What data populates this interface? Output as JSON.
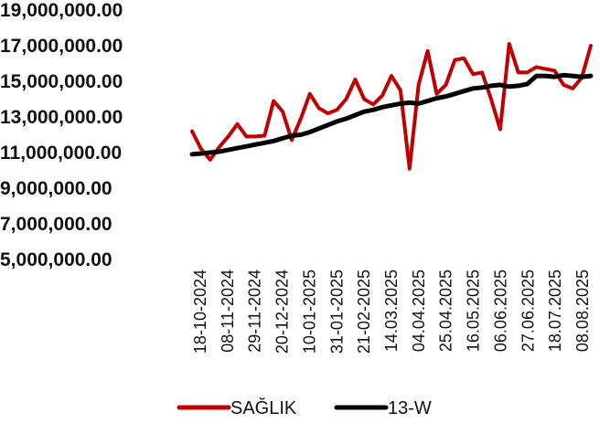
{
  "chart_data": {
    "type": "line",
    "title": "",
    "xlabel": "",
    "ylabel": "",
    "ylim": [
      5000000,
      19000000
    ],
    "y_ticks": [
      "5,000,000.00",
      "7,000,000.00",
      "9,000,000.00",
      "11,000,000.00",
      "13,000,000.00",
      "15,000,000.00",
      "17,000,000.00",
      "19,000,000.00"
    ],
    "x_tick_labels": [
      "18-10-2024",
      "08-11-2024",
      "29-11-2024",
      "20-12-2024",
      "10-01-2025",
      "31-01-2025",
      "21-02-2025",
      "14.03.2025",
      "04.04.2025",
      "25.04.2025",
      "16.05.2025",
      "06.06.2025",
      "27.06.2025",
      "18.07.2025",
      "08.08.2025"
    ],
    "grid": false,
    "legend_position": "bottom",
    "series": [
      {
        "name": "SAĞLIK",
        "color": "#c00000",
        "values": [
          12200000,
          11200000,
          10600000,
          11300000,
          11900000,
          12600000,
          11900000,
          11900000,
          11950000,
          13900000,
          13300000,
          11700000,
          12900000,
          14300000,
          13500000,
          13200000,
          13400000,
          14000000,
          15100000,
          14000000,
          13700000,
          14200000,
          15300000,
          14500000,
          10100000,
          14800000,
          16700000,
          14300000,
          14800000,
          16200000,
          16300000,
          15400000,
          15500000,
          14000000,
          12300000,
          17100000,
          15500000,
          15500000,
          15800000,
          15700000,
          15600000,
          14800000,
          14600000,
          15200000,
          17000000
        ]
      },
      {
        "name": "13-W",
        "color": "#000000",
        "values": [
          10900000,
          10950000,
          11000000,
          11050000,
          11150000,
          11250000,
          11350000,
          11450000,
          11550000,
          11650000,
          11800000,
          11950000,
          12000000,
          12150000,
          12350000,
          12550000,
          12750000,
          12900000,
          13100000,
          13300000,
          13400000,
          13550000,
          13650000,
          13750000,
          13800000,
          13750000,
          13900000,
          14050000,
          14150000,
          14300000,
          14450000,
          14600000,
          14650000,
          14750000,
          14800000,
          14700000,
          14750000,
          14850000,
          15300000,
          15300000,
          15250000,
          15350000,
          15300000,
          15250000,
          15300000
        ]
      }
    ]
  }
}
